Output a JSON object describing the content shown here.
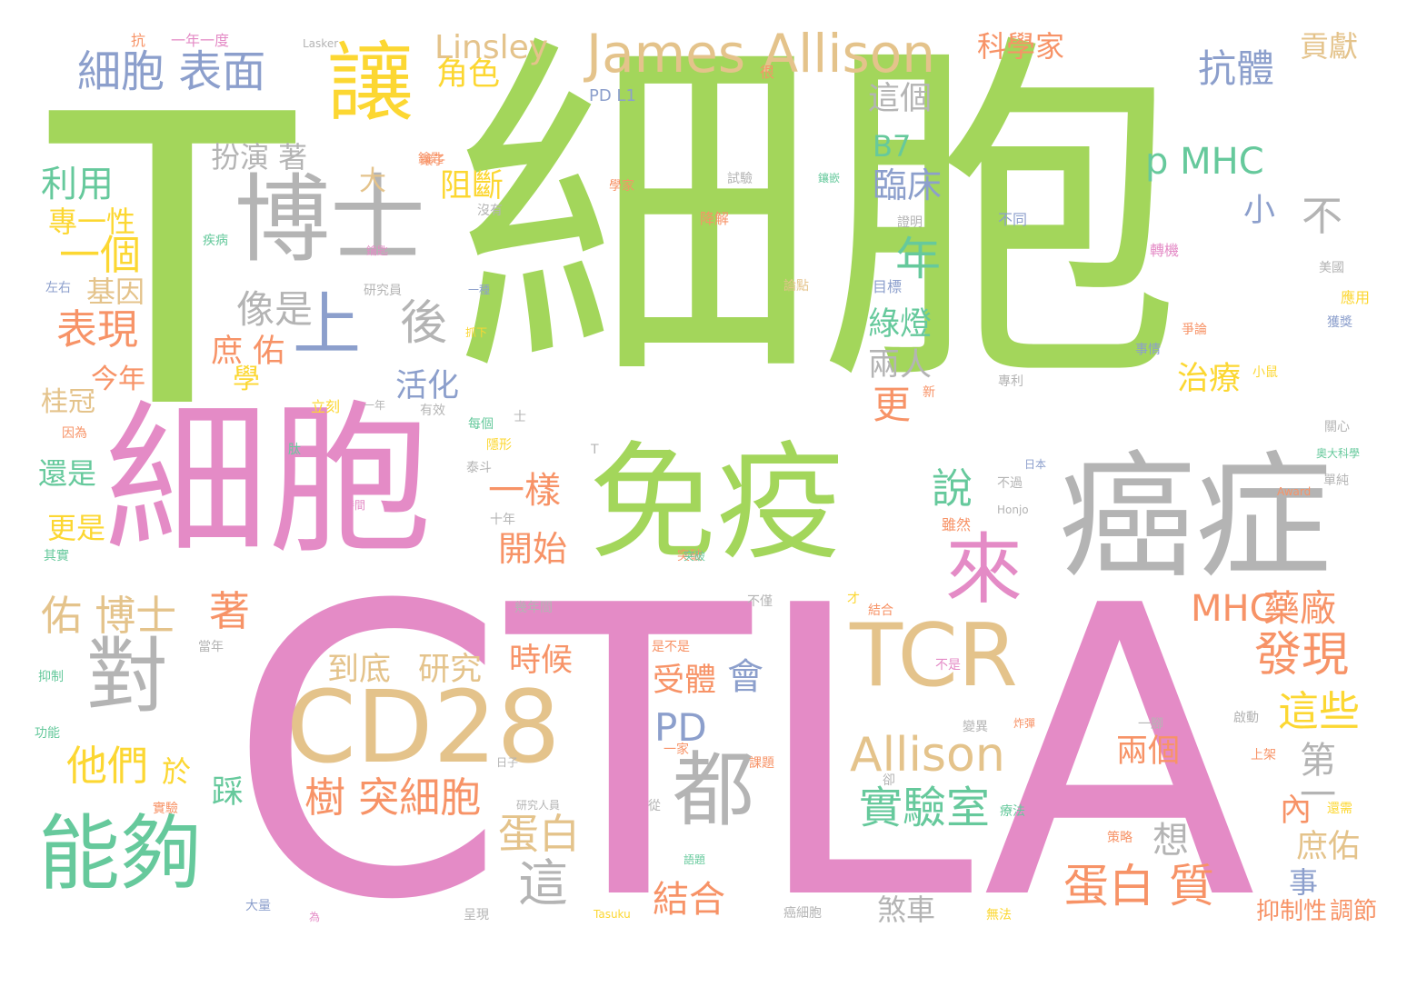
{
  "palette": {
    "green": "#a3d65b",
    "pink": "#e48bc6",
    "gray": "#b4b4b4",
    "tan": "#e4c38b",
    "teal": "#66c99c",
    "orange": "#f79367",
    "blue": "#8c9fcc",
    "yellow": "#fcd732"
  },
  "words": [
    {
      "text": "細胞",
      "color": "green"
    },
    {
      "text": "CTLA",
      "color": "pink"
    },
    {
      "text": "T",
      "color": "green"
    },
    {
      "text": "細胞",
      "color": "pink"
    },
    {
      "text": "癌症",
      "color": "gray"
    },
    {
      "text": "免疫",
      "color": "green"
    },
    {
      "text": "CD28",
      "color": "tan"
    },
    {
      "text": "博士",
      "color": "gray"
    },
    {
      "text": "TCR",
      "color": "tan"
    },
    {
      "text": "讓",
      "color": "yellow"
    },
    {
      "text": "能夠",
      "color": "teal"
    },
    {
      "text": "對",
      "color": "gray"
    },
    {
      "text": "都",
      "color": "gray"
    },
    {
      "text": "來",
      "color": "pink"
    },
    {
      "text": "James Allison",
      "color": "tan"
    },
    {
      "text": "Allison",
      "color": "tan"
    },
    {
      "text": "上",
      "color": "blue"
    },
    {
      "text": "細胞 表面",
      "color": "blue"
    },
    {
      "text": "蛋白 質",
      "color": "orange"
    },
    {
      "text": "發現",
      "color": "orange"
    },
    {
      "text": "實驗室",
      "color": "teal"
    },
    {
      "text": "樹 突細胞",
      "color": "orange"
    },
    {
      "text": "佑 博士",
      "color": "tan"
    },
    {
      "text": "他們",
      "color": "yellow"
    },
    {
      "text": "抗體",
      "color": "blue"
    },
    {
      "text": "年",
      "color": "teal"
    },
    {
      "text": "後",
      "color": "gray"
    },
    {
      "text": "像是",
      "color": "gray"
    },
    {
      "text": "一個",
      "color": "yellow"
    },
    {
      "text": "表現",
      "color": "orange"
    },
    {
      "text": "開始",
      "color": "orange"
    },
    {
      "text": "蛋白",
      "color": "tan"
    },
    {
      "text": "結合",
      "color": "orange"
    },
    {
      "text": "這",
      "color": "gray"
    },
    {
      "text": "一樣",
      "color": "orange"
    },
    {
      "text": "這些",
      "color": "yellow"
    },
    {
      "text": "說",
      "color": "teal"
    },
    {
      "text": "MHC",
      "color": "orange"
    },
    {
      "text": "p MHC",
      "color": "teal"
    },
    {
      "text": "PD",
      "color": "blue"
    },
    {
      "text": "受體",
      "color": "orange"
    },
    {
      "text": "會",
      "color": "blue"
    },
    {
      "text": "時候",
      "color": "orange"
    },
    {
      "text": "研究",
      "color": "tan"
    },
    {
      "text": "到底",
      "color": "tan"
    },
    {
      "text": "著",
      "color": "orange"
    },
    {
      "text": "Linsley",
      "color": "tan"
    },
    {
      "text": "角色",
      "color": "yellow"
    },
    {
      "text": "扮演 著",
      "color": "gray"
    },
    {
      "text": "利用",
      "color": "teal"
    },
    {
      "text": "專一性",
      "color": "yellow"
    },
    {
      "text": "基因",
      "color": "tan"
    },
    {
      "text": "庶 佑",
      "color": "orange"
    },
    {
      "text": "今年",
      "color": "orange"
    },
    {
      "text": "桂冠",
      "color": "tan"
    },
    {
      "text": "學",
      "color": "yellow"
    },
    {
      "text": "活化",
      "color": "blue"
    },
    {
      "text": "阻斷",
      "color": "yellow"
    },
    {
      "text": "大",
      "color": "tan"
    },
    {
      "text": "B7",
      "color": "teal"
    },
    {
      "text": "臨床",
      "color": "blue"
    },
    {
      "text": "綠燈",
      "color": "teal"
    },
    {
      "text": "兩人",
      "color": "gray"
    },
    {
      "text": "更",
      "color": "orange"
    },
    {
      "text": "治療",
      "color": "yellow"
    },
    {
      "text": "科學家",
      "color": "orange"
    },
    {
      "text": "這個",
      "color": "gray"
    },
    {
      "text": "貢獻",
      "color": "tan"
    },
    {
      "text": "不",
      "color": "gray"
    },
    {
      "text": "小",
      "color": "blue"
    },
    {
      "text": "藥廠",
      "color": "orange"
    },
    {
      "text": "兩個",
      "color": "orange"
    },
    {
      "text": "第一",
      "color": "gray"
    },
    {
      "text": "內",
      "color": "orange"
    },
    {
      "text": "庶佑",
      "color": "tan"
    },
    {
      "text": "想",
      "color": "gray"
    },
    {
      "text": "事",
      "color": "blue"
    },
    {
      "text": "抑制性",
      "color": "orange"
    },
    {
      "text": "調節",
      "color": "orange"
    },
    {
      "text": "煞車",
      "color": "gray"
    },
    {
      "text": "於",
      "color": "yellow"
    },
    {
      "text": "踩",
      "color": "teal"
    },
    {
      "text": "還是",
      "color": "teal"
    },
    {
      "text": "更是",
      "color": "yellow"
    },
    {
      "text": "PD L1",
      "color": "blue"
    },
    {
      "text": "Lasker",
      "color": "gray"
    },
    {
      "text": "抗",
      "color": "orange"
    },
    {
      "text": "一年一度",
      "color": "pink"
    },
    {
      "text": "很",
      "color": "orange"
    },
    {
      "text": "試驗",
      "color": "gray"
    },
    {
      "text": "降解",
      "color": "orange"
    },
    {
      "text": "證明",
      "color": "gray"
    },
    {
      "text": "不同",
      "color": "blue"
    },
    {
      "text": "目標",
      "color": "blue"
    },
    {
      "text": "論點",
      "color": "tan"
    },
    {
      "text": "轉機",
      "color": "pink"
    },
    {
      "text": "美國",
      "color": "gray"
    },
    {
      "text": "應用",
      "color": "yellow"
    },
    {
      "text": "獲獎",
      "color": "blue"
    },
    {
      "text": "事情",
      "color": "blue"
    },
    {
      "text": "爭論",
      "color": "orange"
    },
    {
      "text": "專利",
      "color": "gray"
    },
    {
      "text": "小鼠",
      "color": "yellow"
    },
    {
      "text": "關心",
      "color": "gray"
    },
    {
      "text": "單純",
      "color": "gray"
    },
    {
      "text": "奧大科學",
      "color": "teal"
    },
    {
      "text": "Award",
      "color": "orange"
    },
    {
      "text": "Honjo",
      "color": "gray"
    },
    {
      "text": "不過",
      "color": "gray"
    },
    {
      "text": "日本",
      "color": "blue"
    },
    {
      "text": "雖然",
      "color": "orange"
    },
    {
      "text": "結合",
      "color": "orange"
    },
    {
      "text": "不僅",
      "color": "gray"
    },
    {
      "text": "是不是",
      "color": "orange"
    },
    {
      "text": "不是",
      "color": "pink"
    },
    {
      "text": "啟動",
      "color": "gray"
    },
    {
      "text": "上架",
      "color": "orange"
    },
    {
      "text": "一腳",
      "color": "gray"
    },
    {
      "text": "還需",
      "color": "yellow"
    },
    {
      "text": "療法",
      "color": "teal"
    },
    {
      "text": "策略",
      "color": "orange"
    },
    {
      "text": "Tasuku",
      "color": "yellow"
    },
    {
      "text": "無法",
      "color": "yellow"
    },
    {
      "text": "癌細胞",
      "color": "gray"
    },
    {
      "text": "呈現",
      "color": "gray"
    },
    {
      "text": "大量",
      "color": "blue"
    },
    {
      "text": "當年",
      "color": "gray"
    },
    {
      "text": "抑制",
      "color": "teal"
    },
    {
      "text": "功能",
      "color": "teal"
    },
    {
      "text": "實驗",
      "color": "orange"
    },
    {
      "text": "左右",
      "color": "blue"
    },
    {
      "text": "疾病",
      "color": "teal"
    },
    {
      "text": "因為",
      "color": "orange"
    },
    {
      "text": "其實",
      "color": "teal"
    },
    {
      "text": "十年",
      "color": "gray"
    },
    {
      "text": "幾年間",
      "color": "gray"
    },
    {
      "text": "立刻",
      "color": "yellow"
    },
    {
      "text": "有效",
      "color": "gray"
    },
    {
      "text": "每個",
      "color": "teal"
    },
    {
      "text": "隱形",
      "color": "yellow"
    },
    {
      "text": "泰斗",
      "color": "gray"
    },
    {
      "text": "突破",
      "color": "orange"
    },
    {
      "text": "日子",
      "color": "gray"
    },
    {
      "text": "課題",
      "color": "orange"
    },
    {
      "text": "變異",
      "color": "gray"
    },
    {
      "text": "炸彈",
      "color": "orange"
    },
    {
      "text": "從",
      "color": "gray"
    },
    {
      "text": "一家",
      "color": "orange"
    },
    {
      "text": "鑰匙",
      "color": "orange"
    },
    {
      "text": "語題",
      "color": "teal"
    },
    {
      "text": "一年",
      "color": "gray"
    },
    {
      "text": "一種",
      "color": "blue"
    },
    {
      "text": "抓下",
      "color": "yellow"
    },
    {
      "text": "研究員",
      "color": "gray"
    },
    {
      "text": "鑲嵌",
      "color": "teal"
    },
    {
      "text": "鑰匙",
      "color": "pink"
    },
    {
      "text": "學家",
      "color": "orange"
    },
    {
      "text": "沒有",
      "color": "gray"
    },
    {
      "text": "時間",
      "color": "pink"
    },
    {
      "text": "突破",
      "color": "teal"
    },
    {
      "text": "鑲子",
      "color": "orange"
    },
    {
      "text": "研究人員",
      "color": "gray"
    },
    {
      "text": "T",
      "color": "gray"
    },
    {
      "text": "卻",
      "color": "gray"
    },
    {
      "text": "才",
      "color": "yellow"
    },
    {
      "text": "士",
      "color": "gray"
    },
    {
      "text": "肽",
      "color": "teal"
    },
    {
      "text": "為",
      "color": "pink"
    },
    {
      "text": "新",
      "color": "orange"
    }
  ]
}
